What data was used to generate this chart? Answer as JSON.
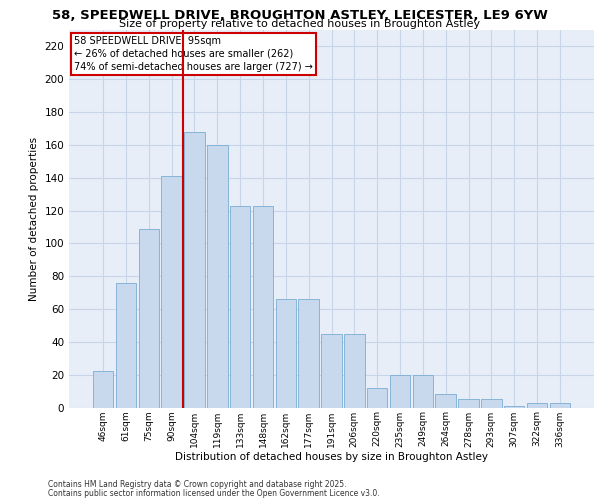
{
  "title_line1": "58, SPEEDWELL DRIVE, BROUGHTON ASTLEY, LEICESTER, LE9 6YW",
  "title_line2": "Size of property relative to detached houses in Broughton Astley",
  "xlabel": "Distribution of detached houses by size in Broughton Astley",
  "ylabel": "Number of detached properties",
  "categories": [
    "46sqm",
    "61sqm",
    "75sqm",
    "90sqm",
    "104sqm",
    "119sqm",
    "133sqm",
    "148sqm",
    "162sqm",
    "177sqm",
    "191sqm",
    "206sqm",
    "220sqm",
    "235sqm",
    "249sqm",
    "264sqm",
    "278sqm",
    "293sqm",
    "307sqm",
    "322sqm",
    "336sqm"
  ],
  "values": [
    22,
    76,
    109,
    141,
    168,
    160,
    123,
    123,
    66,
    66,
    45,
    45,
    12,
    20,
    20,
    8,
    5,
    5,
    1,
    3,
    3
  ],
  "bar_color": "#c8d9ee",
  "bar_edge_color": "#7aadd4",
  "grid_color": "#c8d4e8",
  "background_color": "#e8eef8",
  "vline_color": "#cc0000",
  "annotation_text": "58 SPEEDWELL DRIVE: 95sqm\n← 26% of detached houses are smaller (262)\n74% of semi-detached houses are larger (727) →",
  "annotation_box_color": "#cc0000",
  "ylim": [
    0,
    230
  ],
  "yticks": [
    0,
    20,
    40,
    60,
    80,
    100,
    120,
    140,
    160,
    180,
    200,
    220
  ],
  "footer_line1": "Contains HM Land Registry data © Crown copyright and database right 2025.",
  "footer_line2": "Contains public sector information licensed under the Open Government Licence v3.0."
}
